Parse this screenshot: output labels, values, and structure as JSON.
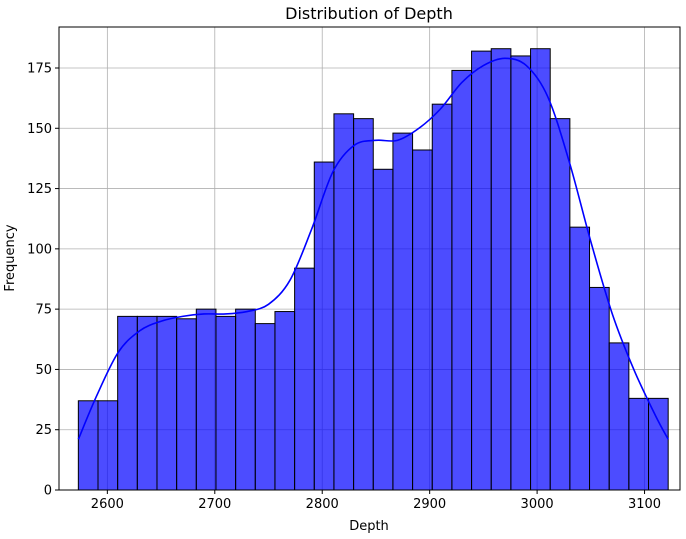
{
  "chart_data": {
    "type": "bar",
    "title": "Distribution of Depth",
    "xlabel": "Depth",
    "ylabel": "Frequency",
    "xlim": [
      2555,
      3133
    ],
    "ylim": [
      0,
      192
    ],
    "xticks": [
      2600,
      2700,
      2800,
      2900,
      3000,
      3100
    ],
    "yticks": [
      0,
      25,
      50,
      75,
      100,
      125,
      150,
      175
    ],
    "grid": true,
    "bar_color": "#0000ff",
    "bar_edge_color": "#000000",
    "kde_color": "#0000ff",
    "bins": [
      {
        "x0": 2573.0,
        "x1": 2591.3,
        "count": 37
      },
      {
        "x0": 2591.3,
        "x1": 2609.6,
        "count": 37
      },
      {
        "x0": 2609.6,
        "x1": 2627.9,
        "count": 72
      },
      {
        "x0": 2627.9,
        "x1": 2646.2,
        "count": 72
      },
      {
        "x0": 2646.2,
        "x1": 2664.5,
        "count": 72
      },
      {
        "x0": 2664.5,
        "x1": 2682.8,
        "count": 71
      },
      {
        "x0": 2682.8,
        "x1": 2701.1,
        "count": 75
      },
      {
        "x0": 2701.1,
        "x1": 2719.4,
        "count": 72
      },
      {
        "x0": 2719.4,
        "x1": 2737.7,
        "count": 75
      },
      {
        "x0": 2737.7,
        "x1": 2756.0,
        "count": 69
      },
      {
        "x0": 2756.0,
        "x1": 2774.3,
        "count": 74
      },
      {
        "x0": 2774.3,
        "x1": 2792.6,
        "count": 92
      },
      {
        "x0": 2792.6,
        "x1": 2810.9,
        "count": 136
      },
      {
        "x0": 2810.9,
        "x1": 2829.2,
        "count": 156
      },
      {
        "x0": 2829.2,
        "x1": 2847.5,
        "count": 154
      },
      {
        "x0": 2847.5,
        "x1": 2865.8,
        "count": 133
      },
      {
        "x0": 2865.8,
        "x1": 2884.1,
        "count": 148
      },
      {
        "x0": 2884.1,
        "x1": 2902.4,
        "count": 141
      },
      {
        "x0": 2902.4,
        "x1": 2920.7,
        "count": 160
      },
      {
        "x0": 2920.7,
        "x1": 2939.0,
        "count": 174
      },
      {
        "x0": 2939.0,
        "x1": 2957.3,
        "count": 182
      },
      {
        "x0": 2957.3,
        "x1": 2975.6,
        "count": 183
      },
      {
        "x0": 2975.6,
        "x1": 2993.9,
        "count": 180
      },
      {
        "x0": 2993.9,
        "x1": 3012.2,
        "count": 183
      },
      {
        "x0": 3012.2,
        "x1": 3030.5,
        "count": 154
      },
      {
        "x0": 3030.5,
        "x1": 3048.8,
        "count": 109
      },
      {
        "x0": 3048.8,
        "x1": 3067.1,
        "count": 84
      },
      {
        "x0": 3067.1,
        "x1": 3085.4,
        "count": 61
      },
      {
        "x0": 3085.4,
        "x1": 3103.7,
        "count": 38
      },
      {
        "x0": 3103.7,
        "x1": 3122.0,
        "count": 38
      }
    ],
    "kde_curve": [
      [
        2573,
        21
      ],
      [
        2590,
        39
      ],
      [
        2610,
        57
      ],
      [
        2630,
        66
      ],
      [
        2650,
        70
      ],
      [
        2670,
        72
      ],
      [
        2690,
        73
      ],
      [
        2710,
        73
      ],
      [
        2730,
        74
      ],
      [
        2750,
        77
      ],
      [
        2770,
        87
      ],
      [
        2790,
        108
      ],
      [
        2810,
        132
      ],
      [
        2830,
        143
      ],
      [
        2850,
        145
      ],
      [
        2870,
        145
      ],
      [
        2890,
        150
      ],
      [
        2910,
        158
      ],
      [
        2930,
        169
      ],
      [
        2950,
        176
      ],
      [
        2970,
        179
      ],
      [
        2990,
        176
      ],
      [
        3010,
        163
      ],
      [
        3030,
        136
      ],
      [
        3050,
        103
      ],
      [
        3070,
        73
      ],
      [
        3090,
        50
      ],
      [
        3110,
        31
      ],
      [
        3122,
        21
      ]
    ]
  }
}
